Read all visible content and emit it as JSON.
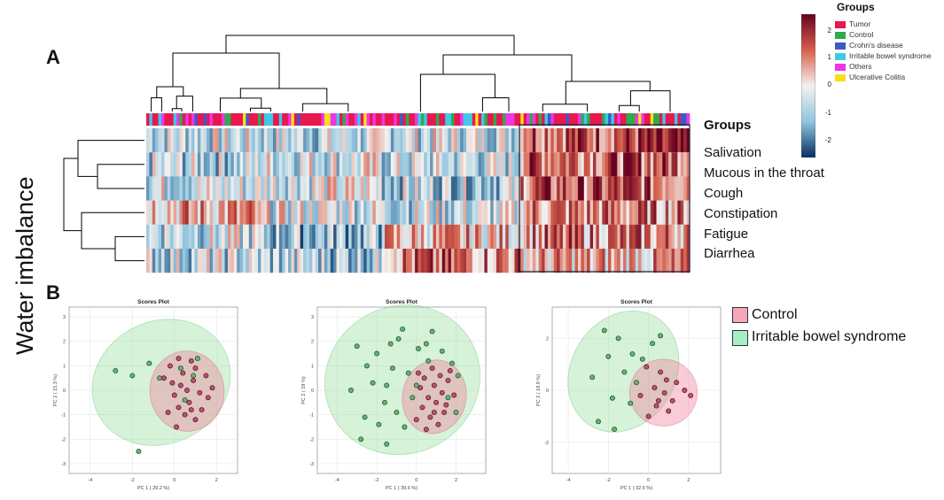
{
  "panel_a_label": "A",
  "panel_b_label": "B",
  "side_title": "Water imbalance",
  "heatmap": {
    "row_header": "Groups",
    "rows": [
      "Salivation",
      "Mucous in the throat",
      "Cough",
      "Constipation",
      "Fatigue",
      "Diarrhea"
    ]
  },
  "colorbar": {
    "title": "Groups",
    "ticks": [
      "2",
      "1",
      "0",
      "-1",
      "-2"
    ],
    "colors": {
      "high": "#67001f",
      "mid_high": "#d6604d",
      "mid": "#f4f1ee",
      "mid_low": "#92c5de",
      "low": "#053061"
    }
  },
  "group_legend": [
    {
      "label": "Tumor",
      "color": "#e8174f"
    },
    {
      "label": "Control",
      "color": "#2eab4a"
    },
    {
      "label": "Crohn's disease",
      "color": "#3b5cc4"
    },
    {
      "label": "Irritable bowel syndrome",
      "color": "#3fc9e8"
    },
    {
      "label": "Others",
      "color": "#ee35e6"
    },
    {
      "label": "Ulcerative Colitis",
      "color": "#f5e01a"
    }
  ],
  "pca_legend": [
    {
      "label": "Control",
      "color": "#f4a7b9"
    },
    {
      "label": "Irritable bowel syndrome",
      "color": "#a6f0c6"
    }
  ],
  "chart_data": [
    {
      "type": "scatter",
      "title": "Scores Plot",
      "xlabel": "PC 1 ( 29.2 %)",
      "ylabel": "PC 2 ( 15.3 %)",
      "xlim": [
        -5,
        3
      ],
      "ylim": [
        -3.4,
        3.4
      ],
      "xticks": [
        "-4",
        "-2",
        "0",
        "2"
      ],
      "yticks": [
        "-3",
        "-2",
        "-1",
        "0",
        "1",
        "2",
        "3"
      ],
      "series": [
        {
          "name": "Control",
          "points": [
            [
              0.2,
              1.3
            ],
            [
              0.8,
              1.2
            ],
            [
              -0.2,
              1.0
            ],
            [
              1.0,
              0.9
            ],
            [
              0.4,
              0.7
            ],
            [
              1.5,
              0.6
            ],
            [
              -0.5,
              0.5
            ],
            [
              0.9,
              0.4
            ],
            [
              0.3,
              0.2
            ],
            [
              1.8,
              0.1
            ],
            [
              0.6,
              0.0
            ],
            [
              1.2,
              -0.1
            ],
            [
              0.0,
              -0.2
            ],
            [
              1.6,
              -0.3
            ],
            [
              0.7,
              -0.5
            ],
            [
              0.2,
              -0.7
            ],
            [
              1.3,
              -0.8
            ],
            [
              -0.3,
              -0.9
            ],
            [
              0.5,
              -1.0
            ],
            [
              1.0,
              -1.2
            ],
            [
              0.1,
              -1.5
            ],
            [
              0.8,
              -0.8
            ],
            [
              -0.1,
              0.3
            ]
          ]
        },
        {
          "name": "Irritable bowel syndrome",
          "points": [
            [
              -2.8,
              0.8
            ],
            [
              -2.0,
              0.6
            ],
            [
              -1.2,
              1.1
            ],
            [
              -0.7,
              0.5
            ],
            [
              0.3,
              0.9
            ],
            [
              1.1,
              1.3
            ],
            [
              -1.7,
              -2.5
            ],
            [
              0.9,
              0.6
            ],
            [
              0.5,
              -0.4
            ]
          ]
        }
      ]
    },
    {
      "type": "scatter",
      "title": "Scores Plot",
      "xlabel": "PC 1 ( 39.6 %)",
      "ylabel": "PC 2 ( 19 %)",
      "xlim": [
        -5,
        3.5
      ],
      "ylim": [
        -3.4,
        3.4
      ],
      "xticks": [
        "-4",
        "-2",
        "0",
        "2"
      ],
      "yticks": [
        "-3",
        "-2",
        "-1",
        "0",
        "1",
        "2",
        "3"
      ],
      "series": [
        {
          "name": "Control",
          "points": [
            [
              0.8,
              0.9
            ],
            [
              1.2,
              0.6
            ],
            [
              0.4,
              0.5
            ],
            [
              1.6,
              0.4
            ],
            [
              0.9,
              0.2
            ],
            [
              0.2,
              0.1
            ],
            [
              1.3,
              -0.1
            ],
            [
              0.6,
              -0.3
            ],
            [
              1.9,
              -0.2
            ],
            [
              1.0,
              -0.5
            ],
            [
              0.3,
              -0.7
            ],
            [
              1.4,
              -0.9
            ],
            [
              0.7,
              -1.1
            ],
            [
              0.0,
              -1.2
            ],
            [
              1.1,
              -1.4
            ],
            [
              0.5,
              -1.6
            ],
            [
              1.7,
              0.8
            ],
            [
              0.1,
              0.7
            ],
            [
              1.5,
              -0.6
            ],
            [
              0.9,
              -0.9
            ]
          ]
        },
        {
          "name": "Irritable bowel syndrome",
          "points": [
            [
              -3.0,
              1.8
            ],
            [
              -2.5,
              1.0
            ],
            [
              -2.2,
              0.3
            ],
            [
              -2.0,
              1.5
            ],
            [
              -1.6,
              -0.5
            ],
            [
              -1.2,
              0.9
            ],
            [
              -0.9,
              2.1
            ],
            [
              -0.4,
              0.7
            ],
            [
              -0.2,
              -0.3
            ],
            [
              0.1,
              1.7
            ],
            [
              0.6,
              1.2
            ],
            [
              1.3,
              1.6
            ],
            [
              1.8,
              1.1
            ],
            [
              2.1,
              0.6
            ],
            [
              -2.6,
              -1.1
            ],
            [
              -1.9,
              -1.4
            ],
            [
              -1.5,
              -2.2
            ],
            [
              -1.0,
              -0.9
            ],
            [
              -0.6,
              -1.5
            ],
            [
              -3.3,
              0.0
            ],
            [
              -1.3,
              1.9
            ],
            [
              0.5,
              1.9
            ],
            [
              -0.7,
              2.5
            ],
            [
              -2.8,
              -2.0
            ],
            [
              0.0,
              0.2
            ],
            [
              0.8,
              2.4
            ],
            [
              1.6,
              -0.3
            ],
            [
              2.0,
              -0.9
            ],
            [
              -1.5,
              0.2
            ]
          ]
        }
      ]
    },
    {
      "type": "scatter",
      "title": "Scores Plot",
      "xlabel": "PC 1 ( 32.6 %)",
      "ylabel": "PC 2 ( 19.9 %)",
      "xlim": [
        -4.8,
        3.6
      ],
      "ylim": [
        -3.2,
        3.2
      ],
      "xticks": [
        "-4",
        "-2",
        "0",
        "2"
      ],
      "yticks": [
        "-2",
        "0",
        "2"
      ],
      "series": [
        {
          "name": "Control",
          "points": [
            [
              -0.1,
              0.9
            ],
            [
              0.6,
              0.7
            ],
            [
              0.9,
              0.4
            ],
            [
              1.4,
              0.3
            ],
            [
              0.3,
              0.1
            ],
            [
              1.8,
              0.0
            ],
            [
              0.8,
              -0.1
            ],
            [
              -0.4,
              -0.2
            ],
            [
              1.2,
              -0.4
            ],
            [
              0.4,
              -0.6
            ],
            [
              1.0,
              -0.8
            ],
            [
              0.0,
              -1.0
            ],
            [
              2.1,
              -0.2
            ],
            [
              0.5,
              -0.4
            ]
          ]
        },
        {
          "name": "Irritable bowel syndrome",
          "points": [
            [
              -2.2,
              2.3
            ],
            [
              -1.5,
              2.0
            ],
            [
              -0.8,
              1.4
            ],
            [
              -2.0,
              1.3
            ],
            [
              -1.2,
              0.7
            ],
            [
              -0.6,
              0.3
            ],
            [
              -2.8,
              0.5
            ],
            [
              -1.8,
              -0.3
            ],
            [
              -0.9,
              -0.5
            ],
            [
              -2.5,
              -1.2
            ],
            [
              -1.7,
              -1.5
            ],
            [
              0.2,
              1.8
            ],
            [
              0.6,
              2.1
            ],
            [
              -0.3,
              1.2
            ]
          ]
        }
      ]
    }
  ]
}
